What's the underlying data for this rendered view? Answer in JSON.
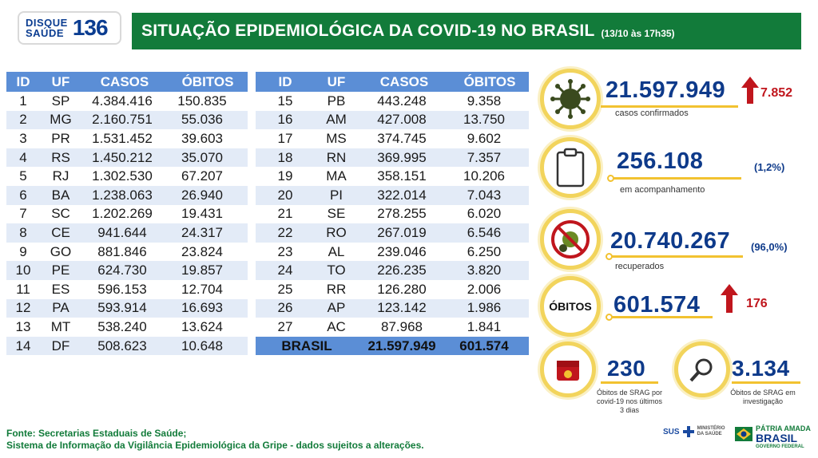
{
  "logo": {
    "line1": "DISQUE",
    "line2": "SAÚDE",
    "number": "136"
  },
  "header": {
    "title": "SITUAÇÃO EPIDEMIOLÓGICA DA COVID-19 NO BRASIL",
    "date": "(13/10 às 17h35)"
  },
  "table": {
    "columns": [
      "ID",
      "UF",
      "CASOS",
      "ÓBITOS"
    ],
    "left_rows": [
      [
        "1",
        "SP",
        "4.384.416",
        "150.835"
      ],
      [
        "2",
        "MG",
        "2.160.751",
        "55.036"
      ],
      [
        "3",
        "PR",
        "1.531.452",
        "39.603"
      ],
      [
        "4",
        "RS",
        "1.450.212",
        "35.070"
      ],
      [
        "5",
        "RJ",
        "1.302.530",
        "67.207"
      ],
      [
        "6",
        "BA",
        "1.238.063",
        "26.940"
      ],
      [
        "7",
        "SC",
        "1.202.269",
        "19.431"
      ],
      [
        "8",
        "CE",
        "941.644",
        "24.317"
      ],
      [
        "9",
        "GO",
        "881.846",
        "23.824"
      ],
      [
        "10",
        "PE",
        "624.730",
        "19.857"
      ],
      [
        "11",
        "ES",
        "596.153",
        "12.704"
      ],
      [
        "12",
        "PA",
        "593.914",
        "16.693"
      ],
      [
        "13",
        "MT",
        "538.240",
        "13.624"
      ],
      [
        "14",
        "DF",
        "508.623",
        "10.648"
      ]
    ],
    "right_rows": [
      [
        "15",
        "PB",
        "443.248",
        "9.358"
      ],
      [
        "16",
        "AM",
        "427.008",
        "13.750"
      ],
      [
        "17",
        "MS",
        "374.745",
        "9.602"
      ],
      [
        "18",
        "RN",
        "369.995",
        "7.357"
      ],
      [
        "19",
        "MA",
        "358.151",
        "10.206"
      ],
      [
        "20",
        "PI",
        "322.014",
        "7.043"
      ],
      [
        "21",
        "SE",
        "278.255",
        "6.020"
      ],
      [
        "22",
        "RO",
        "267.019",
        "6.546"
      ],
      [
        "23",
        "AL",
        "239.046",
        "6.250"
      ],
      [
        "24",
        "TO",
        "226.235",
        "3.820"
      ],
      [
        "25",
        "RR",
        "126.280",
        "2.006"
      ],
      [
        "26",
        "AP",
        "123.142",
        "1.986"
      ],
      [
        "27",
        "AC",
        "87.968",
        "1.841"
      ]
    ],
    "total": {
      "label": "BRASIL",
      "casos": "21.597.949",
      "obitos": "601.574"
    }
  },
  "stats": {
    "confirmed": {
      "value": "21.597.949",
      "increase": "7.852",
      "label": "casos confirmados",
      "icon": "virus-icon"
    },
    "monitoring": {
      "value": "256.108",
      "percent": "(1,2%)",
      "label": "em acompanhamento",
      "icon": "clipboard-icon"
    },
    "recovered": {
      "value": "20.740.267",
      "percent": "(96,0%)",
      "label": "recuperados",
      "icon": "virus-crossed-icon"
    },
    "deaths": {
      "badge": "ÓBITOS",
      "value": "601.574",
      "increase": "176"
    },
    "srag_recent": {
      "value": "230",
      "label_lines": [
        "Óbitos de SRAG por",
        "covid-19 nos últimos",
        "3 dias"
      ],
      "icon": "calendar-icon"
    },
    "srag_investigation": {
      "value": "3.134",
      "label_lines": [
        "Óbitos de SRAG em",
        "investigação"
      ],
      "icon": "magnifier-icon"
    }
  },
  "footer": {
    "line1": "Fonte: Secretarias Estaduais de Saúde;",
    "line2": "Sistema de Informação da Vigilância Epidemiológica da Gripe - dados sujeitos a alterações."
  },
  "brand": {
    "sus": "SUS",
    "ministry": "MINISTÉRIO DA SAÚDE",
    "gov_top": "PÁTRIA AMADA",
    "gov_big": "BRASIL",
    "gov_sub": "GOVERNO FEDERAL"
  },
  "colors": {
    "title_green": "#127b3a",
    "table_blue": "#5b8ed6",
    "stat_blue": "#0e3a8a",
    "accent_yellow": "#f2c230",
    "alert_red": "#c0161d"
  }
}
